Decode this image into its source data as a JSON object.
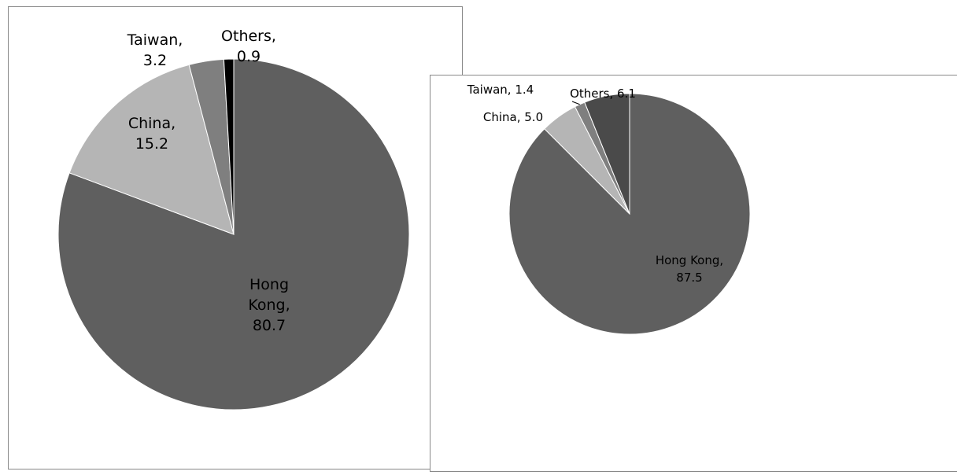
{
  "chart_data": [
    {
      "type": "pie",
      "title": "",
      "legend": "none",
      "slices": [
        {
          "label": "Hong Kong",
          "value": 80.7,
          "color": "#5f5f5f"
        },
        {
          "label": "China",
          "value": 15.2,
          "color": "#b5b5b5"
        },
        {
          "label": "Taiwan",
          "value": 3.2,
          "color": "#7f7f7f"
        },
        {
          "label": "Others",
          "value": 0.9,
          "color": "#000000"
        }
      ],
      "data_labels": [
        {
          "lines": [
            "Hong",
            "Kong,",
            "80.7"
          ]
        },
        {
          "lines": [
            "China,",
            "15.2"
          ]
        },
        {
          "lines": [
            "Taiwan,",
            "3.2"
          ]
        },
        {
          "lines": [
            "Others,",
            "0.9"
          ]
        }
      ]
    },
    {
      "type": "pie",
      "title": "",
      "legend": "none",
      "slices": [
        {
          "label": "Hong Kong",
          "value": 87.5,
          "color": "#5f5f5f"
        },
        {
          "label": "China",
          "value": 5.0,
          "color": "#b5b5b5"
        },
        {
          "label": "Taiwan",
          "value": 1.4,
          "color": "#7f7f7f"
        },
        {
          "label": "Others",
          "value": 6.1,
          "color": "#4a4a4a"
        }
      ],
      "data_labels": [
        {
          "lines": [
            "Hong Kong,",
            "87.5"
          ]
        },
        {
          "lines": [
            "China, 5.0"
          ]
        },
        {
          "lines": [
            "Taiwan, 1.4"
          ]
        },
        {
          "lines": [
            "Others, 6.1"
          ]
        }
      ]
    }
  ]
}
